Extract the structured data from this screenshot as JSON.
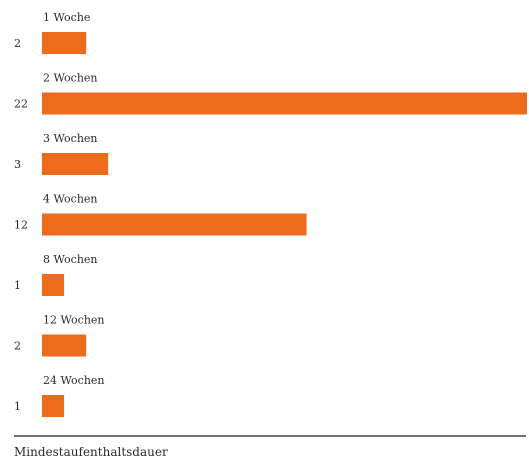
{
  "chart_data": {
    "type": "bar",
    "orientation": "horizontal",
    "categories": [
      "1 Woche",
      "2 Wochen",
      "3 Wochen",
      "4 Wochen",
      "8 Wochen",
      "12 Wochen",
      "24 Wochen"
    ],
    "values": [
      2,
      22,
      3,
      12,
      1,
      2,
      1
    ],
    "xlabel": "Mindestaufenthaltsdauer",
    "ylabel": "",
    "xlim": [
      0,
      22
    ],
    "bar_color": "#ee6a1c",
    "grid": false,
    "legend": "none"
  }
}
